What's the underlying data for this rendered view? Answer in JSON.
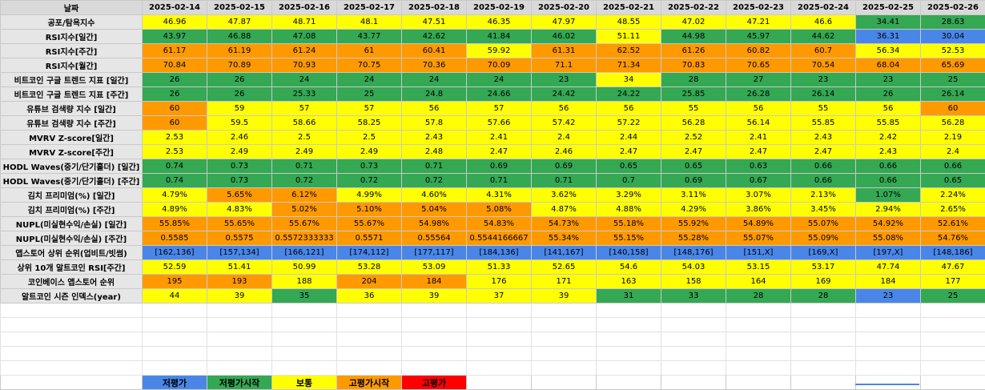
{
  "header": {
    "corner": "날짜",
    "dates": [
      "2025-02-14",
      "2025-02-15",
      "2025-02-16",
      "2025-02-17",
      "2025-02-18",
      "2025-02-19",
      "2025-02-20",
      "2025-02-21",
      "2025-02-22",
      "2025-02-23",
      "2025-02-24",
      "2025-02-25",
      "2025-02-26"
    ]
  },
  "rows": [
    {
      "label": "공포/탐욕지수",
      "cells": [
        [
          "46.96",
          "y"
        ],
        [
          "47.87",
          "y"
        ],
        [
          "48.71",
          "y"
        ],
        [
          "48.1",
          "y"
        ],
        [
          "47.51",
          "y"
        ],
        [
          "46.35",
          "y"
        ],
        [
          "47.97",
          "y"
        ],
        [
          "48.55",
          "y"
        ],
        [
          "47.02",
          "y"
        ],
        [
          "47.21",
          "y"
        ],
        [
          "46.6",
          "y"
        ],
        [
          "34.41",
          "g"
        ],
        [
          "28.63",
          "g"
        ]
      ]
    },
    {
      "label": "RSI지수[일간]",
      "cells": [
        [
          "43.97",
          "g"
        ],
        [
          "46.88",
          "g"
        ],
        [
          "47.08",
          "g"
        ],
        [
          "43.77",
          "g"
        ],
        [
          "42.62",
          "g"
        ],
        [
          "41.84",
          "g"
        ],
        [
          "46.02",
          "g"
        ],
        [
          "51.11",
          "y"
        ],
        [
          "44.98",
          "g"
        ],
        [
          "45.97",
          "g"
        ],
        [
          "44.62",
          "g"
        ],
        [
          "36.31",
          "b"
        ],
        [
          "30.04",
          "b"
        ]
      ]
    },
    {
      "label": "RSI지수[주간]",
      "cells": [
        [
          "61.17",
          "o"
        ],
        [
          "61.19",
          "o"
        ],
        [
          "61.24",
          "o"
        ],
        [
          "61",
          "o"
        ],
        [
          "60.41",
          "o"
        ],
        [
          "59.92",
          "y"
        ],
        [
          "61.31",
          "o"
        ],
        [
          "62.52",
          "o"
        ],
        [
          "61.26",
          "o"
        ],
        [
          "60.82",
          "o"
        ],
        [
          "60.7",
          "o"
        ],
        [
          "56.34",
          "y"
        ],
        [
          "52.53",
          "y"
        ]
      ]
    },
    {
      "label": "RSI지수[월간]",
      "cells": [
        [
          "70.84",
          "o"
        ],
        [
          "70.89",
          "o"
        ],
        [
          "70.93",
          "o"
        ],
        [
          "70.75",
          "o"
        ],
        [
          "70.36",
          "o"
        ],
        [
          "70.09",
          "o"
        ],
        [
          "71.1",
          "o"
        ],
        [
          "71.34",
          "o"
        ],
        [
          "70.83",
          "o"
        ],
        [
          "70.65",
          "o"
        ],
        [
          "70.54",
          "o"
        ],
        [
          "68.04",
          "o"
        ],
        [
          "65.69",
          "o"
        ]
      ]
    },
    {
      "label": "비트코인 구글 트렌드 지표 [일간]",
      "cells": [
        [
          "26",
          "g"
        ],
        [
          "26",
          "g"
        ],
        [
          "24",
          "g"
        ],
        [
          "24",
          "g"
        ],
        [
          "24",
          "g"
        ],
        [
          "24",
          "g"
        ],
        [
          "23",
          "g"
        ],
        [
          "34",
          "y"
        ],
        [
          "28",
          "g"
        ],
        [
          "27",
          "g"
        ],
        [
          "23",
          "g"
        ],
        [
          "23",
          "g"
        ],
        [
          "25",
          "g"
        ]
      ]
    },
    {
      "label": "비트코인 구글 트렌드 지표 [주간]",
      "cells": [
        [
          "26",
          "g"
        ],
        [
          "26",
          "g"
        ],
        [
          "25.33",
          "g"
        ],
        [
          "25",
          "g"
        ],
        [
          "24.8",
          "g"
        ],
        [
          "24.66",
          "g"
        ],
        [
          "24.42",
          "g"
        ],
        [
          "24.22",
          "g"
        ],
        [
          "25.85",
          "g"
        ],
        [
          "26.28",
          "g"
        ],
        [
          "26.14",
          "g"
        ],
        [
          "26",
          "g"
        ],
        [
          "26.14",
          "g"
        ]
      ]
    },
    {
      "label": "유튜브 검색량 지수 [일간]",
      "cells": [
        [
          "60",
          "o"
        ],
        [
          "59",
          "y"
        ],
        [
          "57",
          "y"
        ],
        [
          "57",
          "y"
        ],
        [
          "56",
          "y"
        ],
        [
          "57",
          "y"
        ],
        [
          "56",
          "y"
        ],
        [
          "56",
          "y"
        ],
        [
          "55",
          "y"
        ],
        [
          "56",
          "y"
        ],
        [
          "55",
          "y"
        ],
        [
          "56",
          "y"
        ],
        [
          "60",
          "o"
        ]
      ]
    },
    {
      "label": "유튜브 검색량 지수 [주간]",
      "cells": [
        [
          "60",
          "o"
        ],
        [
          "59.5",
          "y"
        ],
        [
          "58.66",
          "y"
        ],
        [
          "58.25",
          "y"
        ],
        [
          "57.8",
          "y"
        ],
        [
          "57.66",
          "y"
        ],
        [
          "57.42",
          "y"
        ],
        [
          "57.22",
          "y"
        ],
        [
          "56.28",
          "y"
        ],
        [
          "56.14",
          "y"
        ],
        [
          "55.85",
          "y"
        ],
        [
          "55.85",
          "y"
        ],
        [
          "56.28",
          "y"
        ]
      ]
    },
    {
      "label": "MVRV Z-score[일간]",
      "cells": [
        [
          "2.53",
          "y"
        ],
        [
          "2.46",
          "y"
        ],
        [
          "2.5",
          "y"
        ],
        [
          "2.5",
          "y"
        ],
        [
          "2.43",
          "y"
        ],
        [
          "2.41",
          "y"
        ],
        [
          "2.4",
          "y"
        ],
        [
          "2.44",
          "y"
        ],
        [
          "2.52",
          "y"
        ],
        [
          "2.41",
          "y"
        ],
        [
          "2.43",
          "y"
        ],
        [
          "2.42",
          "y"
        ],
        [
          "2.19",
          "y"
        ]
      ]
    },
    {
      "label": "MVRV Z-score[주간]",
      "cells": [
        [
          "2.53",
          "y"
        ],
        [
          "2.49",
          "y"
        ],
        [
          "2.49",
          "y"
        ],
        [
          "2.49",
          "y"
        ],
        [
          "2.48",
          "y"
        ],
        [
          "2.47",
          "y"
        ],
        [
          "2.46",
          "y"
        ],
        [
          "2.47",
          "y"
        ],
        [
          "2.47",
          "y"
        ],
        [
          "2.47",
          "y"
        ],
        [
          "2.47",
          "y"
        ],
        [
          "2.43",
          "y"
        ],
        [
          "2.4",
          "y"
        ]
      ]
    },
    {
      "label": "HODL Waves(중기/단기홀더) [일간]",
      "cells": [
        [
          "0.74",
          "g"
        ],
        [
          "0.73",
          "g"
        ],
        [
          "0.71",
          "g"
        ],
        [
          "0.73",
          "g"
        ],
        [
          "0.71",
          "g"
        ],
        [
          "0.69",
          "g"
        ],
        [
          "0.69",
          "g"
        ],
        [
          "0.65",
          "g"
        ],
        [
          "0.65",
          "g"
        ],
        [
          "0.63",
          "g"
        ],
        [
          "0.66",
          "g"
        ],
        [
          "0.66",
          "g"
        ],
        [
          "0.66",
          "g"
        ]
      ]
    },
    {
      "label": "HODL Waves(중기/단기홀더) [주간]",
      "cells": [
        [
          "0.74",
          "g"
        ],
        [
          "0.73",
          "g"
        ],
        [
          "0.72",
          "g"
        ],
        [
          "0.72",
          "g"
        ],
        [
          "0.72",
          "g"
        ],
        [
          "0.71",
          "g"
        ],
        [
          "0.71",
          "g"
        ],
        [
          "0.7",
          "g"
        ],
        [
          "0.69",
          "g"
        ],
        [
          "0.67",
          "g"
        ],
        [
          "0.66",
          "g"
        ],
        [
          "0.66",
          "g"
        ],
        [
          "0.65",
          "g"
        ]
      ]
    },
    {
      "label": "김치 프리미엄(%) [일간]",
      "cells": [
        [
          "4.79%",
          "y"
        ],
        [
          "5.65%",
          "o"
        ],
        [
          "6.12%",
          "o"
        ],
        [
          "4.99%",
          "y"
        ],
        [
          "4.60%",
          "y"
        ],
        [
          "4.31%",
          "y"
        ],
        [
          "3.62%",
          "y"
        ],
        [
          "3.29%",
          "y"
        ],
        [
          "3.11%",
          "y"
        ],
        [
          "3.07%",
          "y"
        ],
        [
          "2.13%",
          "y"
        ],
        [
          "1.07%",
          "g"
        ],
        [
          "2.24%",
          "y"
        ]
      ]
    },
    {
      "label": "김치 프리미엄(%) [주간]",
      "cells": [
        [
          "4.89%",
          "y"
        ],
        [
          "4.83%",
          "y"
        ],
        [
          "5.02%",
          "o"
        ],
        [
          "5.10%",
          "o"
        ],
        [
          "5.04%",
          "o"
        ],
        [
          "5.08%",
          "o"
        ],
        [
          "4.87%",
          "y"
        ],
        [
          "4.88%",
          "y"
        ],
        [
          "4.29%",
          "y"
        ],
        [
          "3.86%",
          "y"
        ],
        [
          "3.45%",
          "y"
        ],
        [
          "2.94%",
          "y"
        ],
        [
          "2.65%",
          "y"
        ]
      ]
    },
    {
      "label": "NUPL(미실현수익/손실) [일간]",
      "cells": [
        [
          "55.85%",
          "o"
        ],
        [
          "55.65%",
          "o"
        ],
        [
          "55.67%",
          "o"
        ],
        [
          "55.67%",
          "o"
        ],
        [
          "54.98%",
          "o"
        ],
        [
          "54.83%",
          "o"
        ],
        [
          "54.73%",
          "o"
        ],
        [
          "55.18%",
          "o"
        ],
        [
          "55.92%",
          "o"
        ],
        [
          "54.89%",
          "o"
        ],
        [
          "55.07%",
          "o"
        ],
        [
          "54.92%",
          "o"
        ],
        [
          "52.61%",
          "o"
        ]
      ]
    },
    {
      "label": "NUPL(미실현수익/손실) [주간]",
      "cells": [
        [
          "0.5585",
          "o"
        ],
        [
          "0.5575",
          "o"
        ],
        [
          "0.5572333333",
          "o"
        ],
        [
          "0.5571",
          "o"
        ],
        [
          "0.55564",
          "o"
        ],
        [
          "0.5544166667",
          "o"
        ],
        [
          "55.34%",
          "o"
        ],
        [
          "55.15%",
          "o"
        ],
        [
          "55.28%",
          "o"
        ],
        [
          "55.07%",
          "o"
        ],
        [
          "55.09%",
          "o"
        ],
        [
          "55.08%",
          "o"
        ],
        [
          "54.76%",
          "o"
        ]
      ]
    },
    {
      "label": "앱스토어 상위 순위(업비트/빗썸)",
      "cells": [
        [
          "[162,136]",
          "b"
        ],
        [
          "[157,134]",
          "b"
        ],
        [
          "[166,121]",
          "b"
        ],
        [
          "[174,112]",
          "b"
        ],
        [
          "[177,117]",
          "b"
        ],
        [
          "[184,136]",
          "b"
        ],
        [
          "[141,167]",
          "b"
        ],
        [
          "[140,158]",
          "b"
        ],
        [
          "[148,176]",
          "b"
        ],
        [
          "[151,X]",
          "b"
        ],
        [
          "[169,X]",
          "b"
        ],
        [
          "[197,X]",
          "b"
        ],
        [
          "[148,186]",
          "b"
        ]
      ]
    },
    {
      "label": "상위 10개 알트코인 RSI[주간]",
      "cells": [
        [
          "52.59",
          "y"
        ],
        [
          "51.41",
          "y"
        ],
        [
          "50.99",
          "y"
        ],
        [
          "53.28",
          "y"
        ],
        [
          "53.09",
          "y"
        ],
        [
          "51.33",
          "y"
        ],
        [
          "52.65",
          "y"
        ],
        [
          "54.6",
          "y"
        ],
        [
          "54.03",
          "y"
        ],
        [
          "53.15",
          "y"
        ],
        [
          "53.17",
          "y"
        ],
        [
          "47.74",
          "y"
        ],
        [
          "47.67",
          "y"
        ]
      ]
    },
    {
      "label": "코인베이스 앱스토어 순위",
      "cells": [
        [
          "195",
          "o"
        ],
        [
          "193",
          "o"
        ],
        [
          "188",
          "y"
        ],
        [
          "204",
          "o"
        ],
        [
          "184",
          "o"
        ],
        [
          "176",
          "y"
        ],
        [
          "171",
          "y"
        ],
        [
          "163",
          "y"
        ],
        [
          "158",
          "y"
        ],
        [
          "164",
          "y"
        ],
        [
          "169",
          "y"
        ],
        [
          "184",
          "y"
        ],
        [
          "177",
          "y"
        ]
      ]
    },
    {
      "label": "알트코인 시즌 인덱스(year)",
      "cells": [
        [
          "44",
          "y"
        ],
        [
          "39",
          "y"
        ],
        [
          "35",
          "g"
        ],
        [
          "36",
          "y"
        ],
        [
          "39",
          "y"
        ],
        [
          "37",
          "y"
        ],
        [
          "39",
          "y"
        ],
        [
          "31",
          "g"
        ],
        [
          "33",
          "g"
        ],
        [
          "28",
          "g"
        ],
        [
          "28",
          "g"
        ],
        [
          "23",
          "b"
        ],
        [
          "25",
          "g"
        ]
      ]
    }
  ],
  "legend": [
    {
      "label": "저평가",
      "color": "#4a86e8"
    },
    {
      "label": "저평가시작",
      "color": "#34a853"
    },
    {
      "label": "보통",
      "color": "#ffff00"
    },
    {
      "label": "고평가시작",
      "color": "#ff9900"
    },
    {
      "label": "고평가",
      "color": "#ff0000"
    }
  ]
}
